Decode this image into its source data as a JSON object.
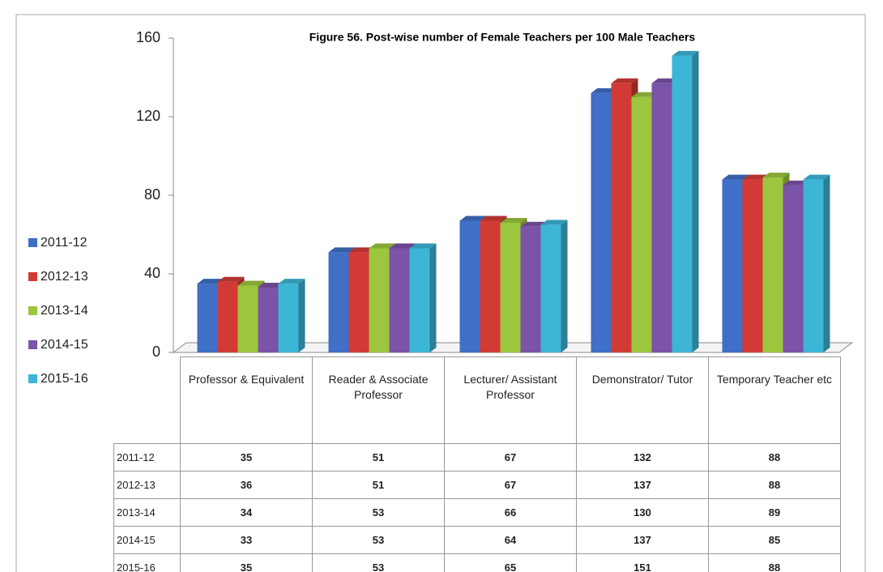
{
  "chart_data": {
    "type": "bar3d",
    "title": "Figure 56. Post-wise number of Female Teachers per 100 Male Teachers",
    "categories": [
      "Professor & Equivalent",
      "Reader & Associate Professor",
      "Lecturer/ Assistant Professor",
      "Demonstrator/ Tutor",
      "Temporary Teacher etc"
    ],
    "series": [
      {
        "name": "2011-12",
        "color": "#3f6fc6",
        "values": [
          35,
          51,
          67,
          132,
          88
        ]
      },
      {
        "name": "2012-13",
        "color": "#d23b35",
        "values": [
          36,
          51,
          67,
          137,
          88
        ]
      },
      {
        "name": "2013-14",
        "color": "#9cc63e",
        "values": [
          34,
          53,
          66,
          130,
          89
        ]
      },
      {
        "name": "2014-15",
        "color": "#7b53a8",
        "values": [
          33,
          53,
          64,
          137,
          85
        ]
      },
      {
        "name": "2015-16",
        "color": "#3db5d6",
        "values": [
          35,
          53,
          65,
          151,
          88
        ]
      }
    ],
    "ylim": [
      0,
      160
    ],
    "yticks": [
      0,
      40,
      80,
      120,
      160
    ],
    "legend": "left"
  }
}
